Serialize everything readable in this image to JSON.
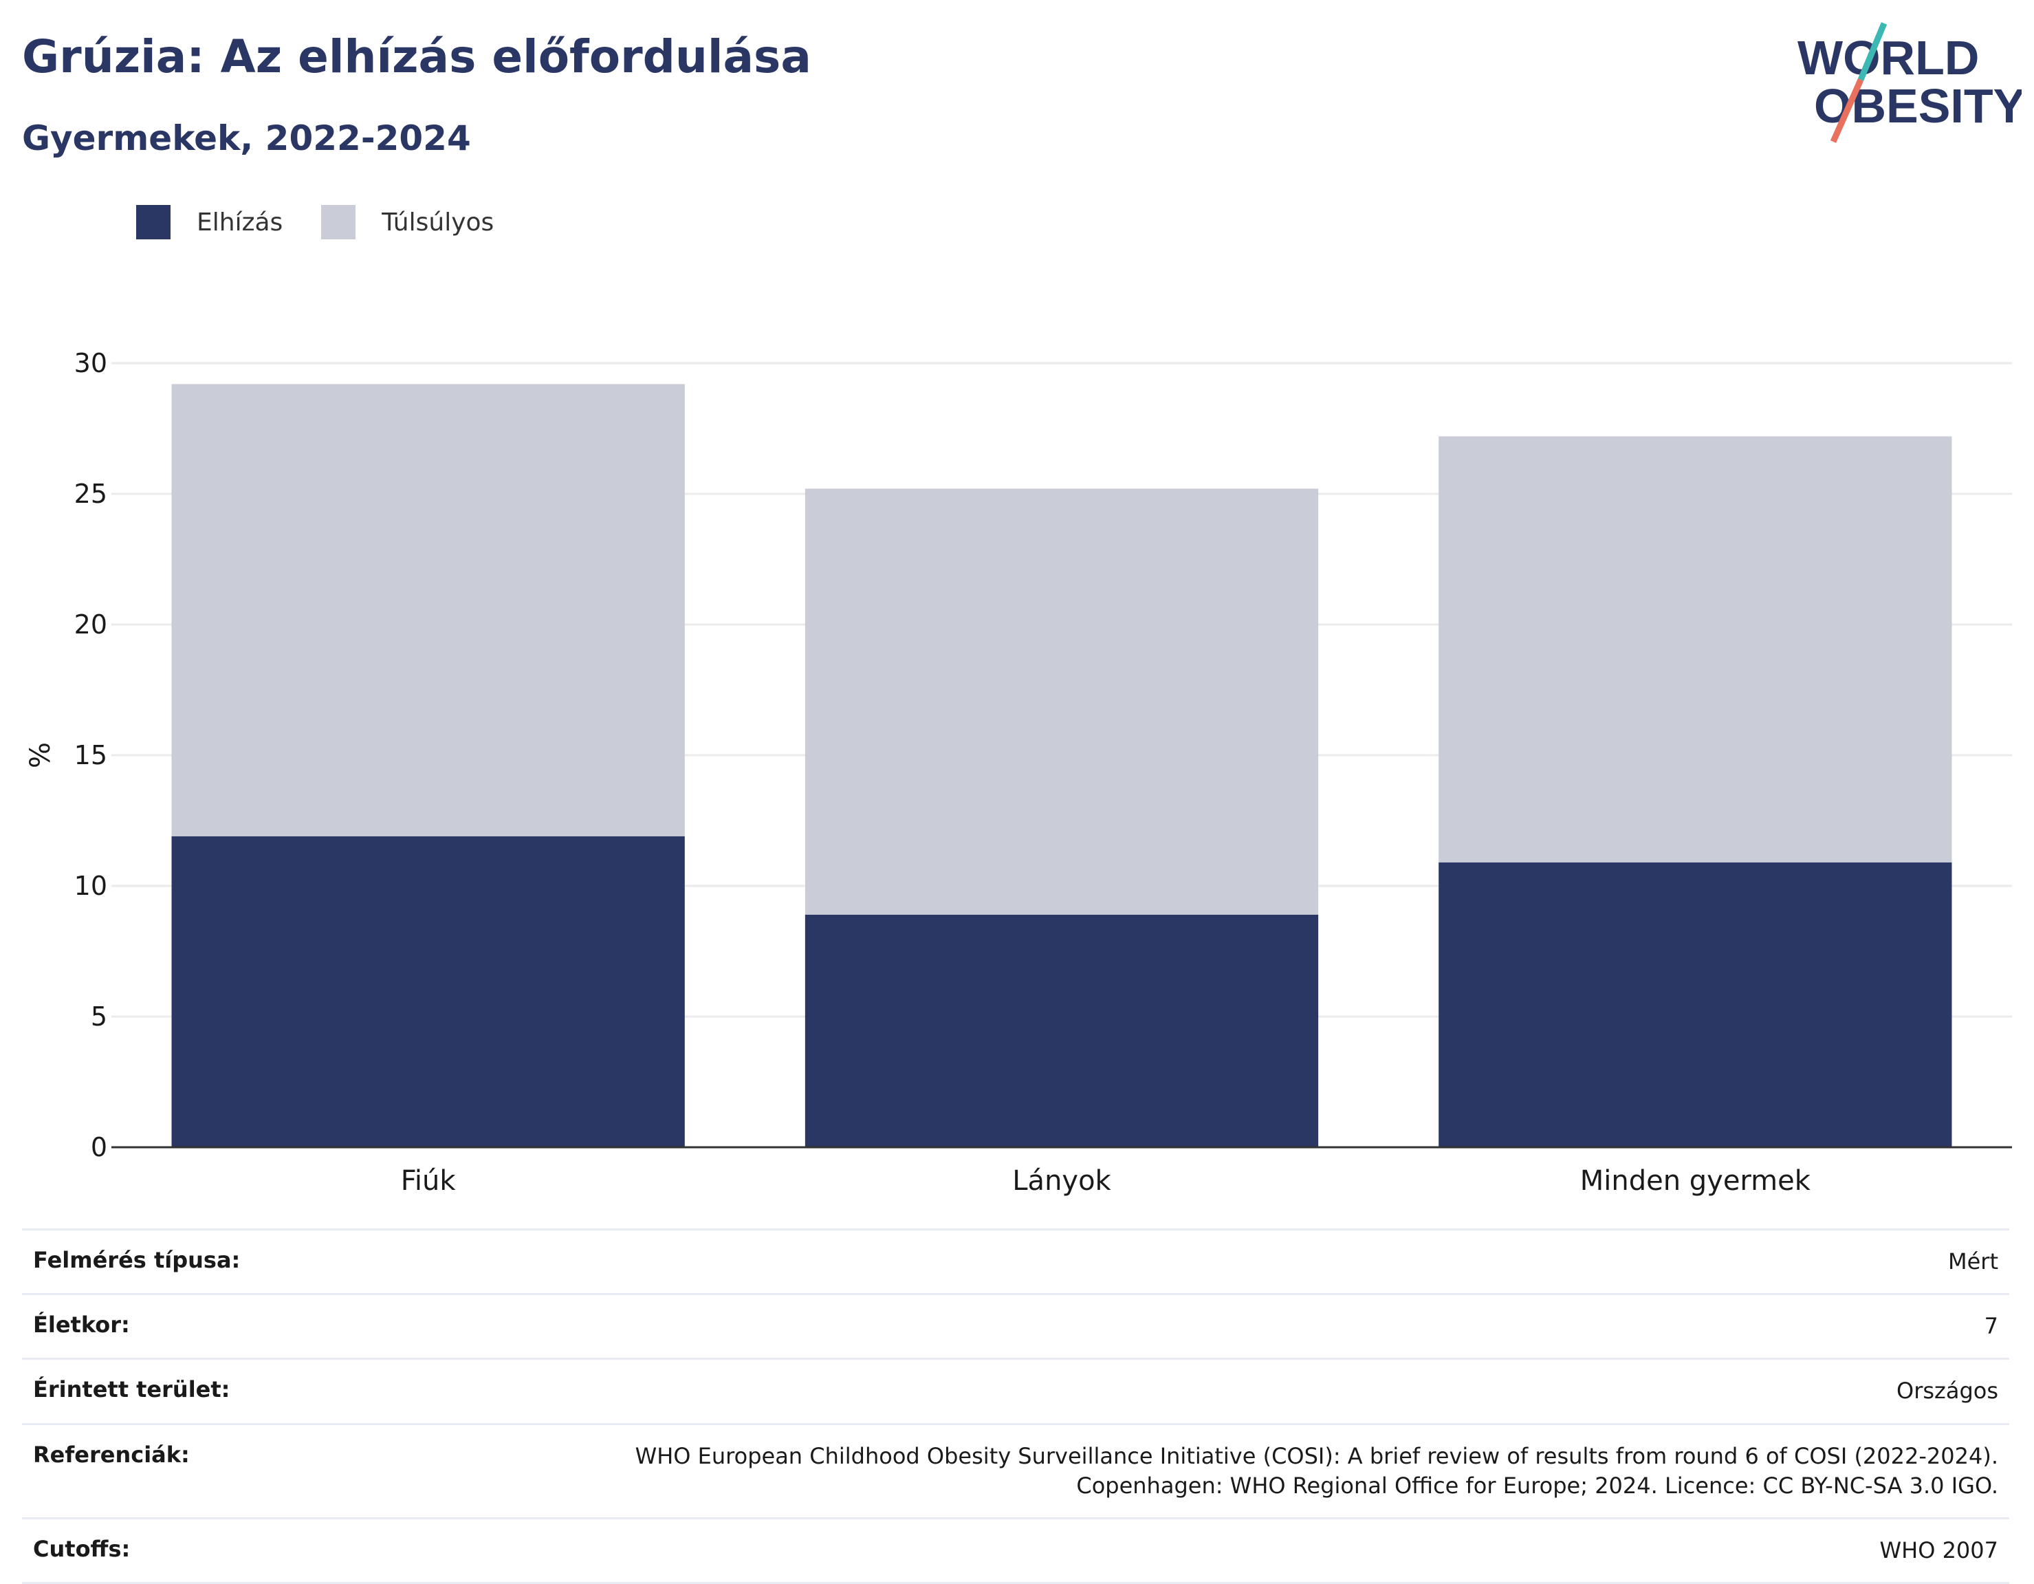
{
  "header": {
    "title": "Grúzia: Az elhízás előfordulása",
    "subtitle": "Gyermekek, 2022-2024"
  },
  "logo": {
    "line1": "WORLD",
    "line2": "OBESITY",
    "colors": {
      "text": "#2a3764",
      "slash_top": "#3cb8b4",
      "slash_bottom": "#e8705c"
    }
  },
  "legend": [
    {
      "label": "Elhízás",
      "color": "#2a3764"
    },
    {
      "label": "Túlsúlyos",
      "color": "#cacdd8"
    }
  ],
  "chart_data": {
    "type": "bar",
    "stacked": true,
    "categories": [
      "Fiúk",
      "Lányok",
      "Minden gyermek"
    ],
    "series": [
      {
        "name": "Elhízás",
        "values": [
          11.9,
          8.9,
          10.9
        ],
        "color": "#2a3764"
      },
      {
        "name": "Túlsúlyos",
        "values": [
          17.3,
          16.3,
          16.3
        ],
        "color": "#cacdd8"
      }
    ],
    "ylabel": "%",
    "ylim": [
      0,
      30
    ],
    "yticks": [
      0,
      5,
      10,
      15,
      20,
      25,
      30
    ],
    "grid": true,
    "legend_position": "top-left"
  },
  "metadata": [
    {
      "label": "Felmérés típusa:",
      "value": "Mért"
    },
    {
      "label": "Életkor:",
      "value": "7"
    },
    {
      "label": "Érintett terület:",
      "value": "Országos"
    },
    {
      "label": "Referenciák:",
      "value": "WHO European Childhood Obesity Surveillance Initiative (COSI): A brief review of results from round 6 of COSI (2022-2024).\nCopenhagen: WHO Regional Office for Europe; 2024. Licence: CC BY-NC-SA 3.0 IGO."
    },
    {
      "label": "Cutoffs:",
      "value": "WHO 2007"
    }
  ]
}
